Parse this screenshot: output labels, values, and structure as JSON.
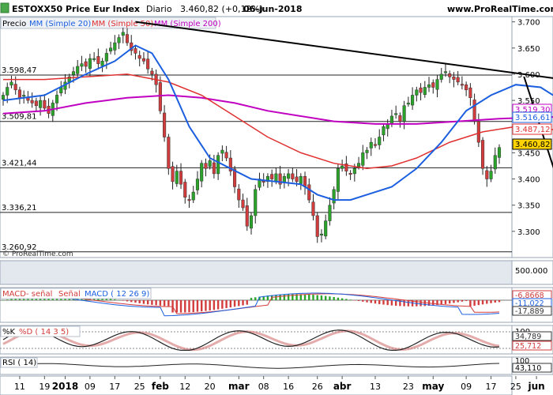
{
  "header": {
    "symbol": "ESTOXX50 Price Eur Index",
    "timeframe": "Diario",
    "last": "3.460,82 (+0,12%)",
    "date": "06-jun-2018",
    "site": "www.ProRealTime.com"
  },
  "legend": {
    "price": "Precio",
    "ma20": "MM (Simple 20)",
    "ma50": "MM (Simple 50)",
    "ma200": "MM (Simple 200)"
  },
  "watermark": "© ProRealTime.com",
  "colors": {
    "bull": "#2aa52a",
    "bear": "#d23c3c",
    "ma20": "#1b5fe0",
    "ma50": "#e03030",
    "ma200": "#c000c0",
    "trend": "#000000",
    "grid": "#ccd3dc",
    "panelBg": "#e3e8ef",
    "hist_pos": "#2aa52a",
    "hist_neg": "#d23c3c"
  },
  "chart_data": [
    {
      "type": "candlestick",
      "name": "price",
      "ylim": [
        3250,
        3710
      ],
      "yticks": [
        "3.700",
        "3.650",
        "3.600",
        "3.550",
        "3.500",
        "3.450",
        "3.400",
        "3.350",
        "3.300"
      ],
      "ytick_values": [
        3700,
        3650,
        3600,
        3550,
        3500,
        3450,
        3400,
        3350,
        3300
      ],
      "x_labels": [
        "11",
        "19",
        "2018",
        "09",
        "17",
        "25",
        "feb",
        "12",
        "20",
        "mar",
        "08",
        "16",
        "26",
        "abr",
        "13",
        "23",
        "may",
        "09",
        "17",
        "25",
        "jun"
      ],
      "x_label_index": [
        4,
        10,
        15,
        21,
        27,
        33,
        38,
        44,
        50,
        57,
        63,
        69,
        76,
        82,
        90,
        98,
        104,
        112,
        118,
        124,
        129
      ],
      "x_label_bold": [
        false,
        false,
        true,
        false,
        false,
        false,
        true,
        false,
        false,
        true,
        false,
        false,
        false,
        true,
        false,
        false,
        true,
        false,
        false,
        false,
        true
      ],
      "level_lines": [
        {
          "label": "3.598,47",
          "value": 3598.47
        },
        {
          "label": "3.509,81",
          "value": 3509.81
        },
        {
          "label": "3.421,44",
          "value": 3421.44
        },
        {
          "label": "3.336,21",
          "value": 3336.21
        },
        {
          "label": "3.260,92",
          "value": 3260.92
        }
      ],
      "right_labels": [
        {
          "label": "3.519,30",
          "value": 3519.3,
          "series": "ma200"
        },
        {
          "label": "3.516,61",
          "value": 3516.61,
          "series": "ma20"
        },
        {
          "label": "3.487,12",
          "value": 3487.12,
          "series": "ma50"
        },
        {
          "label": "3.460,82",
          "value": 3460.82,
          "series": "price"
        }
      ],
      "closes": [
        3560,
        3575,
        3585,
        3570,
        3555,
        3560,
        3550,
        3545,
        3540,
        3550,
        3535,
        3525,
        3545,
        3560,
        3575,
        3585,
        3595,
        3605,
        3615,
        3620,
        3615,
        3630,
        3630,
        3620,
        3625,
        3640,
        3650,
        3660,
        3670,
        3680,
        3660,
        3645,
        3640,
        3630,
        3625,
        3610,
        3600,
        3580,
        3530,
        3480,
        3420,
        3395,
        3415,
        3390,
        3365,
        3360,
        3375,
        3400,
        3430,
        3420,
        3435,
        3410,
        3445,
        3455,
        3440,
        3415,
        3385,
        3360,
        3345,
        3310,
        3330,
        3380,
        3400,
        3395,
        3405,
        3400,
        3410,
        3390,
        3405,
        3410,
        3400,
        3395,
        3405,
        3385,
        3360,
        3330,
        3290,
        3295,
        3320,
        3350,
        3380,
        3420,
        3425,
        3415,
        3410,
        3420,
        3430,
        3450,
        3455,
        3470,
        3465,
        3480,
        3500,
        3505,
        3520,
        3525,
        3510,
        3540,
        3545,
        3560,
        3570,
        3565,
        3575,
        3580,
        3575,
        3590,
        3600,
        3605,
        3595,
        3590,
        3585,
        3580,
        3570,
        3555,
        3510,
        3470,
        3420,
        3400,
        3415,
        3445,
        3460
      ],
      "opens_bull_ratio": "derived",
      "ma20_points": [
        [
          0,
          3550
        ],
        [
          10,
          3560
        ],
        [
          20,
          3600
        ],
        [
          27,
          3625
        ],
        [
          32,
          3655
        ],
        [
          36,
          3640
        ],
        [
          40,
          3590
        ],
        [
          45,
          3500
        ],
        [
          50,
          3440
        ],
        [
          55,
          3420
        ],
        [
          60,
          3400
        ],
        [
          66,
          3395
        ],
        [
          72,
          3390
        ],
        [
          76,
          3370
        ],
        [
          80,
          3360
        ],
        [
          84,
          3360
        ],
        [
          88,
          3370
        ],
        [
          94,
          3385
        ],
        [
          100,
          3420
        ],
        [
          106,
          3470
        ],
        [
          112,
          3530
        ],
        [
          118,
          3560
        ],
        [
          124,
          3580
        ],
        [
          130,
          3575
        ],
        [
          134,
          3555
        ],
        [
          138,
          3530
        ],
        [
          142,
          3517
        ]
      ],
      "ma50_points": [
        [
          0,
          3590
        ],
        [
          10,
          3590
        ],
        [
          20,
          3595
        ],
        [
          30,
          3600
        ],
        [
          40,
          3585
        ],
        [
          48,
          3560
        ],
        [
          56,
          3520
        ],
        [
          64,
          3480
        ],
        [
          72,
          3450
        ],
        [
          80,
          3430
        ],
        [
          88,
          3420
        ],
        [
          94,
          3425
        ],
        [
          100,
          3440
        ],
        [
          108,
          3470
        ],
        [
          116,
          3490
        ],
        [
          124,
          3500
        ],
        [
          132,
          3495
        ],
        [
          138,
          3490
        ],
        [
          142,
          3487
        ]
      ],
      "ma200_points": [
        [
          0,
          3525
        ],
        [
          10,
          3530
        ],
        [
          20,
          3545
        ],
        [
          30,
          3555
        ],
        [
          40,
          3560
        ],
        [
          48,
          3555
        ],
        [
          56,
          3545
        ],
        [
          64,
          3530
        ],
        [
          72,
          3520
        ],
        [
          80,
          3510
        ],
        [
          90,
          3505
        ],
        [
          100,
          3505
        ],
        [
          110,
          3510
        ],
        [
          120,
          3515
        ],
        [
          130,
          3518
        ],
        [
          142,
          3519
        ]
      ],
      "trendlines": [
        [
          [
            32,
            3700
          ],
          [
            142,
            3583
          ]
        ],
        [
          [
            126,
            3595
          ],
          [
            134,
            3400
          ]
        ],
        [
          [
            136,
            3395
          ],
          [
            142,
            3445
          ]
        ]
      ]
    },
    {
      "type": "bar",
      "name": "volume",
      "yticks": [
        "500.000"
      ],
      "ytick_values": [
        500000
      ],
      "ylim": [
        0,
        800000
      ]
    },
    {
      "type": "line",
      "name": "macd",
      "legend": [
        "MACD- señal",
        "Señal",
        "MACD ( 12 26 9)"
      ],
      "labels": [
        {
          "label": "-6,8668",
          "color": "#d23c3c"
        },
        {
          "label": "-11,022",
          "color": "#1b5fe0"
        },
        {
          "label": "-17,889",
          "color": "#333333"
        }
      ]
    },
    {
      "type": "line",
      "name": "stochastic",
      "legend": [
        "%K",
        "%D ( 14 3 5)"
      ],
      "yticks": [
        "100",
        "0"
      ],
      "labels": [
        {
          "label": "34,789",
          "color": "#333333"
        },
        {
          "label": "25,712",
          "color": "#d23c3c"
        }
      ]
    },
    {
      "type": "line",
      "name": "rsi",
      "legend": [
        "RSI ( 14)"
      ],
      "yticks": [
        "100"
      ],
      "labels": [
        {
          "label": "43,110",
          "color": "#333333"
        }
      ]
    }
  ]
}
